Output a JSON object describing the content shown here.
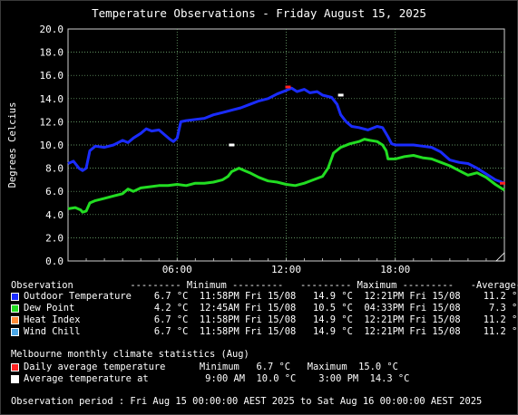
{
  "chart_data": {
    "type": "line",
    "title": "Temperature Observations - Friday August 15, 2025",
    "ylabel": "Degrees Celcius",
    "xlabel": "",
    "xlim": [
      0,
      24
    ],
    "ylim": [
      0,
      20
    ],
    "yticks": [
      "0.0",
      "2.0",
      "4.0",
      "6.0",
      "8.0",
      "10.0",
      "12.0",
      "14.0",
      "16.0",
      "18.0",
      "20.0"
    ],
    "xticks": [
      {
        "h": 6,
        "label": "06:00"
      },
      {
        "h": 12,
        "label": "12:00"
      },
      {
        "h": 18,
        "label": "18:00"
      }
    ],
    "grid": true,
    "series": [
      {
        "name": "Dew Point",
        "color": "#22dd22",
        "points": [
          [
            0,
            4.5
          ],
          [
            0.4,
            4.6
          ],
          [
            0.7,
            4.4
          ],
          [
            0.8,
            4.2
          ],
          [
            1.0,
            4.3
          ],
          [
            1.2,
            5.0
          ],
          [
            1.5,
            5.2
          ],
          [
            2.0,
            5.4
          ],
          [
            2.5,
            5.6
          ],
          [
            3.0,
            5.8
          ],
          [
            3.3,
            6.2
          ],
          [
            3.6,
            6.0
          ],
          [
            4.0,
            6.3
          ],
          [
            4.5,
            6.4
          ],
          [
            5.0,
            6.5
          ],
          [
            5.5,
            6.5
          ],
          [
            6.0,
            6.6
          ],
          [
            6.5,
            6.5
          ],
          [
            7.0,
            6.7
          ],
          [
            7.5,
            6.7
          ],
          [
            8.0,
            6.8
          ],
          [
            8.5,
            7.0
          ],
          [
            8.8,
            7.3
          ],
          [
            9.0,
            7.7
          ],
          [
            9.4,
            8.0
          ],
          [
            9.7,
            7.8
          ],
          [
            10.0,
            7.6
          ],
          [
            10.5,
            7.2
          ],
          [
            11.0,
            6.9
          ],
          [
            11.5,
            6.8
          ],
          [
            12.0,
            6.6
          ],
          [
            12.5,
            6.5
          ],
          [
            13.0,
            6.7
          ],
          [
            13.5,
            7.0
          ],
          [
            14.0,
            7.3
          ],
          [
            14.3,
            8.0
          ],
          [
            14.6,
            9.3
          ],
          [
            15.0,
            9.8
          ],
          [
            15.5,
            10.1
          ],
          [
            16.0,
            10.3
          ],
          [
            16.3,
            10.5
          ],
          [
            16.6,
            10.4
          ],
          [
            17.0,
            10.3
          ],
          [
            17.3,
            10.0
          ],
          [
            17.5,
            9.5
          ],
          [
            17.6,
            8.8
          ],
          [
            18.0,
            8.8
          ],
          [
            18.5,
            9.0
          ],
          [
            19.0,
            9.1
          ],
          [
            19.5,
            8.9
          ],
          [
            20.0,
            8.8
          ],
          [
            20.5,
            8.5
          ],
          [
            21.0,
            8.2
          ],
          [
            21.5,
            7.8
          ],
          [
            22.0,
            7.4
          ],
          [
            22.5,
            7.6
          ],
          [
            23.0,
            7.2
          ],
          [
            23.5,
            6.6
          ],
          [
            24.0,
            6.1
          ]
        ]
      },
      {
        "name": "Outdoor Temperature",
        "color": "#1a2cff",
        "points": [
          [
            0,
            8.4
          ],
          [
            0.3,
            8.6
          ],
          [
            0.6,
            8.0
          ],
          [
            0.8,
            7.8
          ],
          [
            1.0,
            8.0
          ],
          [
            1.2,
            9.5
          ],
          [
            1.5,
            9.9
          ],
          [
            2.0,
            9.8
          ],
          [
            2.5,
            10.0
          ],
          [
            3.0,
            10.4
          ],
          [
            3.3,
            10.2
          ],
          [
            3.6,
            10.6
          ],
          [
            4.0,
            11.0
          ],
          [
            4.3,
            11.4
          ],
          [
            4.6,
            11.2
          ],
          [
            5.0,
            11.3
          ],
          [
            5.3,
            10.9
          ],
          [
            5.6,
            10.5
          ],
          [
            5.8,
            10.3
          ],
          [
            6.0,
            10.6
          ],
          [
            6.2,
            12.0
          ],
          [
            6.5,
            12.1
          ],
          [
            7.0,
            12.2
          ],
          [
            7.5,
            12.3
          ],
          [
            8.0,
            12.6
          ],
          [
            8.5,
            12.8
          ],
          [
            9.0,
            13.0
          ],
          [
            9.5,
            13.2
          ],
          [
            10.0,
            13.5
          ],
          [
            10.5,
            13.8
          ],
          [
            11.0,
            14.0
          ],
          [
            11.5,
            14.4
          ],
          [
            12.0,
            14.7
          ],
          [
            12.3,
            14.9
          ],
          [
            12.6,
            14.6
          ],
          [
            13.0,
            14.8
          ],
          [
            13.3,
            14.5
          ],
          [
            13.7,
            14.6
          ],
          [
            14.0,
            14.3
          ],
          [
            14.5,
            14.1
          ],
          [
            14.8,
            13.5
          ],
          [
            15.0,
            12.6
          ],
          [
            15.3,
            12.0
          ],
          [
            15.6,
            11.6
          ],
          [
            16.0,
            11.5
          ],
          [
            16.5,
            11.3
          ],
          [
            17.0,
            11.6
          ],
          [
            17.3,
            11.5
          ],
          [
            17.6,
            10.7
          ],
          [
            17.8,
            10.1
          ],
          [
            18.0,
            10.0
          ],
          [
            18.5,
            10.0
          ],
          [
            19.0,
            10.0
          ],
          [
            19.5,
            9.9
          ],
          [
            20.0,
            9.8
          ],
          [
            20.5,
            9.4
          ],
          [
            21.0,
            8.7
          ],
          [
            21.5,
            8.5
          ],
          [
            22.0,
            8.4
          ],
          [
            22.5,
            8.0
          ],
          [
            23.0,
            7.5
          ],
          [
            23.5,
            7.0
          ],
          [
            24.0,
            6.7
          ]
        ]
      }
    ],
    "markers": {
      "daily_avg_temp_max": {
        "h": 12.1,
        "v": 15.0,
        "color": "#ff2222"
      },
      "daily_avg_temp_min": {
        "h": 23.9,
        "v": 6.7,
        "color": "#ff2222"
      },
      "avg_temp_9am": {
        "h": 9.0,
        "v": 10.0,
        "color": "#ffffff"
      },
      "avg_temp_3pm": {
        "h": 15.0,
        "v": 14.3,
        "color": "#ffffff"
      }
    }
  },
  "summary": {
    "header": "Observation          --------- Minimum ---------   --------- Maximum ---------   -Average-",
    "rows": [
      {
        "label": "Outdoor Temperature",
        "color": "#1a2cff",
        "text": "Outdoor Temperature    6.7 °C  11:58PM Fri 15/08   14.9 °C  12:21PM Fri 15/08    11.2 °C"
      },
      {
        "label": "Dew Point",
        "color": "#22dd22",
        "text": "Dew Point              4.2 °C  12:45AM Fri 15/08   10.5 °C  04:33PM Fri 15/08     7.3 °C"
      },
      {
        "label": "Heat Index",
        "color": "#ff8c3a",
        "text": "Heat Index             6.7 °C  11:58PM Fri 15/08   14.9 °C  12:21PM Fri 15/08    11.2 °C"
      },
      {
        "label": "Wind Chill",
        "color": "#4aa6e6",
        "text": "Wind Chill             6.7 °C  11:58PM Fri 15/08   14.9 °C  12:21PM Fri 15/08    11.2 °C"
      }
    ],
    "climate_header": "Melbourne monthly climate statistics (Aug)",
    "climate_rows": [
      {
        "color": "#ff2222",
        "text": "Daily average temperature      Minimum   6.7 °C   Maximum  15.0 °C"
      },
      {
        "color": "#ffffff",
        "text": "Average temperature at          9:00 AM  10.0 °C    3:00 PM  14.3 °C"
      }
    ],
    "period": "Observation period : Fri Aug 15 00:00:00 AEST 2025 to Sat Aug 16 00:00:00 AEST 2025"
  }
}
